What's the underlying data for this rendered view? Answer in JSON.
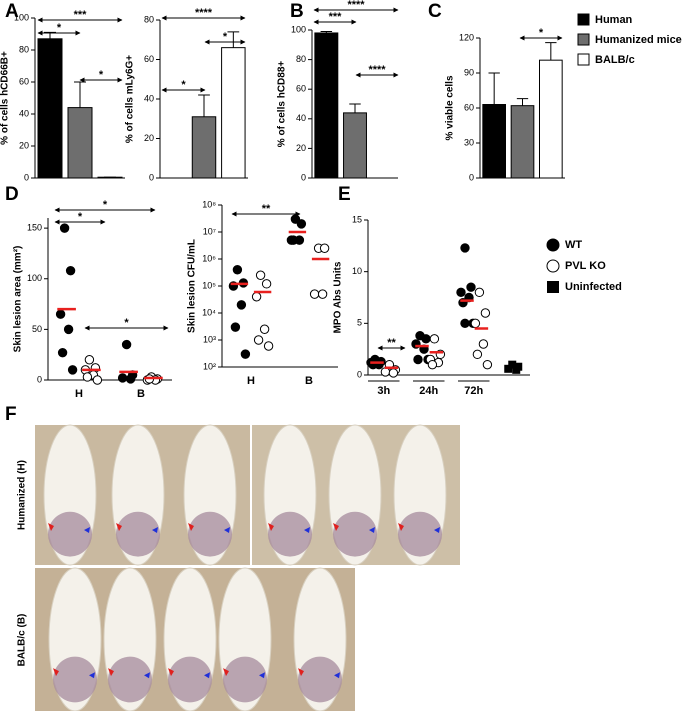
{
  "panel_labels": [
    "A",
    "B",
    "C",
    "D",
    "E",
    "F"
  ],
  "chart_data": [
    {
      "type": "bar",
      "y_label": "% of cells hCD66B+",
      "categories": [
        null,
        null,
        null
      ],
      "values": [
        87,
        44,
        0.5
      ],
      "errors": [
        4,
        16,
        0
      ],
      "colors": [
        "#000000",
        "#6e6e6e",
        "#ffffff"
      ],
      "ylim": [
        0,
        100
      ],
      "yticks": [
        0,
        20,
        40,
        60,
        80,
        100
      ],
      "annotations": [
        "***",
        "*",
        "*"
      ]
    },
    {
      "type": "bar",
      "y_label": "% of cells mLy6G+",
      "categories": [
        null,
        null,
        null
      ],
      "values": [
        0,
        31,
        66
      ],
      "errors": [
        0,
        11,
        8
      ],
      "colors": [
        "#000000",
        "#6e6e6e",
        "#ffffff"
      ],
      "ylim": [
        0,
        80
      ],
      "yticks": [
        0,
        20,
        40,
        60,
        80
      ],
      "annotations": [
        "*",
        "****",
        "*"
      ]
    },
    {
      "type": "bar",
      "y_label": "% of cells hCD88+",
      "categories": [
        null,
        null,
        null
      ],
      "values": [
        98,
        44,
        0
      ],
      "errors": [
        1,
        6,
        0
      ],
      "colors": [
        "#000000",
        "#6e6e6e",
        "#ffffff"
      ],
      "ylim": [
        0,
        100
      ],
      "yticks": [
        0,
        20,
        40,
        60,
        80,
        100
      ],
      "annotations": [
        "***",
        "****",
        "****"
      ]
    },
    {
      "type": "bar",
      "y_label": "% viable cells",
      "categories": [
        null,
        null,
        null
      ],
      "values": [
        63,
        62,
        101
      ],
      "errors": [
        27,
        6,
        15
      ],
      "colors": [
        "#000000",
        "#6e6e6e",
        "#ffffff"
      ],
      "ylim": [
        0,
        120
      ],
      "yticks": [
        0,
        30,
        60,
        90,
        120
      ],
      "annotations": [
        "*"
      ]
    },
    {
      "type": "strip",
      "y_label": "Skin lesion area (mm²)",
      "categories": [
        "H",
        "B"
      ],
      "mean_color": "#e8201e",
      "ylim": [
        0,
        160
      ],
      "yticks": [
        0,
        50,
        100,
        150
      ],
      "series": [
        {
          "marker": "filled",
          "values": [
            [
              150,
              108,
              65,
              50,
              27,
              10
            ],
            [
              35,
              5,
              2,
              1
            ]
          ],
          "means": [
            70,
            8
          ]
        },
        {
          "marker": "open",
          "values": [
            [
              20,
              12,
              10,
              5,
              3,
              0
            ],
            [
              3,
              1,
              0,
              0,
              1
            ]
          ],
          "means": [
            10,
            2
          ]
        }
      ],
      "annotations": [
        "*",
        "*",
        "*"
      ]
    },
    {
      "type": "strip",
      "y_label": "Skin lesion CFU/mL",
      "log": true,
      "categories": [
        "H",
        "B"
      ],
      "mean_color": "#e8201e",
      "ylim": [
        100,
        100000000
      ],
      "yticks": [
        {
          "value": 100,
          "label": "10²"
        },
        {
          "value": 1000,
          "label": "10³"
        },
        {
          "value": 10000,
          "label": "10⁴"
        },
        {
          "value": 100000,
          "label": "10⁵"
        },
        {
          "value": 1000000,
          "label": "10⁶"
        },
        {
          "value": 10000000,
          "label": "10⁷"
        },
        {
          "value": 100000000,
          "label": "10⁸"
        }
      ],
      "series": [
        {
          "marker": "filled",
          "values": [
            [
              400000,
              130000,
              100000,
              20000,
              3000,
              300
            ],
            [
              30000000,
              20000000,
              5000000,
              5000000,
              5000000
            ]
          ],
          "means": [
            120000,
            10000000
          ]
        },
        {
          "marker": "open",
          "values": [
            [
              250000,
              120000,
              40000,
              2500,
              1000,
              600
            ],
            [
              2500000,
              2500000,
              50000,
              50000
            ]
          ],
          "means": [
            60000,
            1000000
          ]
        }
      ],
      "annotations": [
        "**"
      ]
    },
    {
      "type": "strip",
      "y_label": "MPO Abs Units",
      "categories": [
        "3h",
        "24h",
        "72h"
      ],
      "mean_color": "#e8201e",
      "ylim": [
        0,
        15
      ],
      "yticks": [
        0,
        5,
        10,
        15
      ],
      "series": [
        {
          "marker": "filled",
          "values": [
            [
              1.5,
              1.3,
              1.2,
              1,
              1
            ],
            [
              3.8,
              3.5,
              3,
              2.5,
              1.5,
              1.5
            ],
            [
              12.3,
              8.5,
              8,
              7.5,
              7,
              5,
              5
            ]
          ],
          "means": [
            1.2,
            2.8,
            7.2
          ]
        },
        {
          "marker": "open",
          "values": [
            [
              1,
              0.5,
              0.3,
              0.2
            ],
            [
              3.5,
              2,
              1.5,
              1.2,
              1
            ],
            [
              8,
              6,
              5,
              3,
              2,
              1
            ]
          ],
          "means": [
            0.7,
            2.2,
            4.5
          ]
        },
        {
          "marker": "square",
          "values": [
            null,
            null,
            [
              1,
              0.8,
              0.6,
              0.5
            ]
          ]
        }
      ],
      "annotations": [
        "**"
      ]
    }
  ],
  "legend_abc": [
    {
      "label": "Human",
      "color": "#000000"
    },
    {
      "label": "Humanized mice",
      "color": "#6e6e6e"
    },
    {
      "label": "BALB/c",
      "color": "#ffffff"
    }
  ],
  "legend_de": [
    {
      "label": "WT",
      "marker": "filled"
    },
    {
      "label": "PVL KO",
      "marker": "open"
    },
    {
      "label": "Uninfected",
      "marker": "square"
    }
  ],
  "photo_labels": [
    "Humanized (H)",
    "BALB/c (B)"
  ]
}
